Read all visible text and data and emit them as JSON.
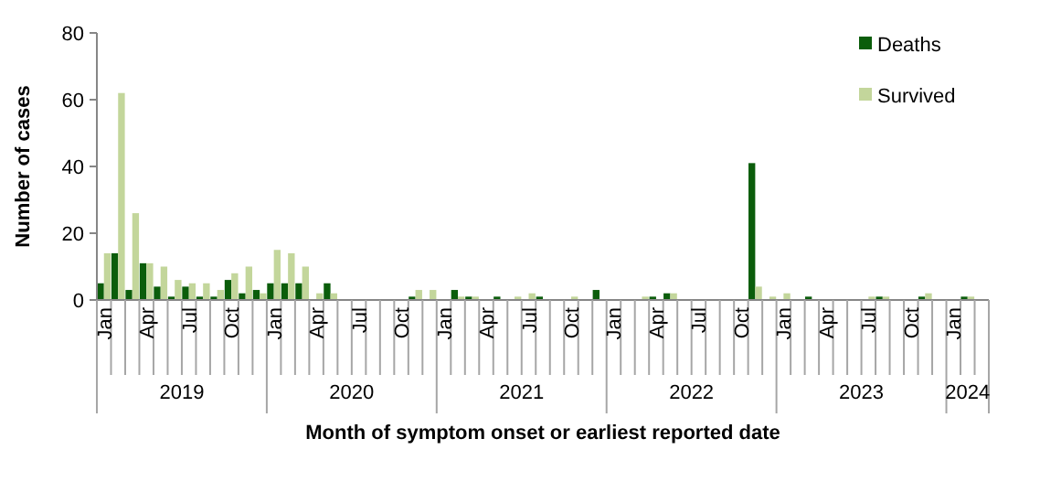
{
  "chart_data": {
    "type": "bar",
    "xlabel": "Month of symptom onset or earliest reported date",
    "ylabel": "Number of cases",
    "categories": [
      "Jan",
      null,
      null,
      "Apr",
      null,
      null,
      "Jul",
      null,
      null,
      "Oct",
      null,
      null,
      "Jan",
      null,
      null,
      "Apr",
      null,
      null,
      "Jul",
      null,
      null,
      "Oct",
      null,
      null,
      "Jan",
      null,
      null,
      "Apr",
      null,
      null,
      "Jul",
      null,
      null,
      "Oct",
      null,
      null,
      "Jan",
      null,
      null,
      "Apr",
      null,
      null,
      "Jul",
      null,
      null,
      "Oct",
      null,
      null,
      "Jan",
      null,
      null,
      "Apr",
      null,
      null,
      "Jul",
      null,
      null,
      "Oct",
      null,
      null,
      "Jan",
      null,
      null
    ],
    "series": [
      {
        "name": "Deaths",
        "color": "#0b5d0b",
        "values": [
          5,
          14,
          3,
          11,
          4,
          1,
          4,
          1,
          1,
          6,
          2,
          3,
          5,
          5,
          5,
          0,
          5,
          0,
          0,
          0,
          0,
          0,
          1,
          0,
          0,
          3,
          1,
          0,
          1,
          0,
          0,
          1,
          0,
          0,
          0,
          3,
          0,
          0,
          0,
          1,
          2,
          0,
          0,
          0,
          0,
          0,
          41,
          0,
          0,
          0,
          1,
          0,
          0,
          0,
          0,
          1,
          0,
          0,
          1,
          0,
          0,
          1,
          0
        ]
      },
      {
        "name": "Survived",
        "color": "#c3d69b",
        "values": [
          14,
          62,
          26,
          11,
          10,
          6,
          5,
          5,
          3,
          8,
          10,
          2,
          15,
          14,
          10,
          2,
          2,
          0,
          0,
          0,
          0,
          0,
          3,
          3,
          0,
          1,
          1,
          0,
          0,
          1,
          2,
          0,
          0,
          1,
          0,
          0,
          0,
          0,
          1,
          0,
          2,
          0,
          0,
          0,
          0,
          0,
          4,
          1,
          2,
          0,
          0,
          0,
          0,
          0,
          1,
          1,
          0,
          0,
          2,
          0,
          0,
          1,
          0
        ]
      }
    ],
    "ylim": [
      0,
      80
    ],
    "yticks": [
      0,
      20,
      40,
      60,
      80
    ],
    "legend": "top right",
    "annotations": [
      "2019",
      "2020",
      "2021",
      "2022",
      "2023",
      "2024"
    ]
  }
}
